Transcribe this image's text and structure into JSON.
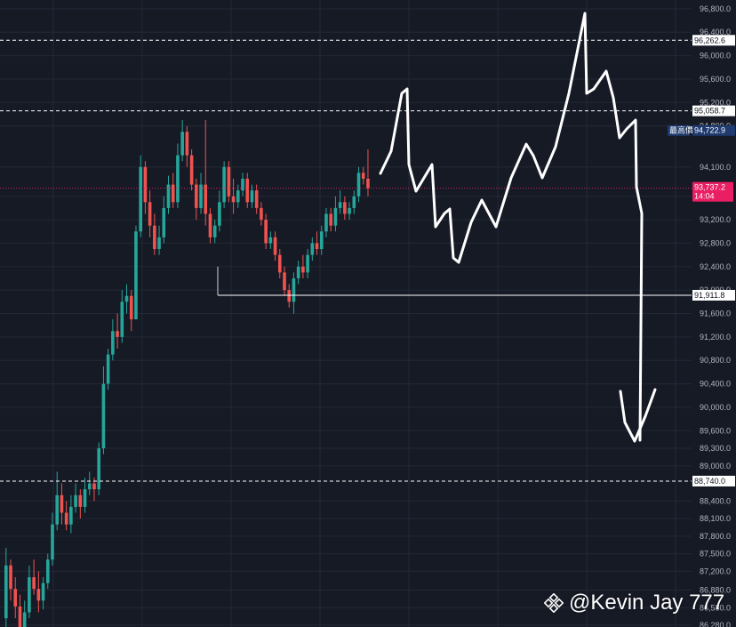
{
  "chart_data": {
    "type": "candlestick",
    "y_axis": {
      "ticks": [
        "96,800.0",
        "96,400.0",
        "96,000.0",
        "95,600.0",
        "95,200.0",
        "94,800.0",
        "94,100.0",
        "93,600.0",
        "93,200.0",
        "92,800.0",
        "92,400.0",
        "92,000.0",
        "91,600.0",
        "91,200.0",
        "90,800.0",
        "90,400.0",
        "90,000.0",
        "89,600.0",
        "89,300.0",
        "89,000.0",
        "88,400.0",
        "88,100.0",
        "87,800.0",
        "87,500.0",
        "87,200.0",
        "86,880.0",
        "86,580.0",
        "86,280.0"
      ],
      "ylim": [
        86250,
        96950
      ]
    },
    "levels": [
      {
        "label": "96,262.6",
        "value": 96262.6,
        "style": "dashed"
      },
      {
        "label": "95,058.7",
        "value": 95058.7,
        "style": "dashed"
      },
      {
        "label": "91,911.8",
        "value": 91911.8,
        "style": "solid"
      },
      {
        "label": "88,740.0",
        "value": 88740.0,
        "style": "dashed"
      }
    ],
    "high_marker": {
      "label": "最高價",
      "value_label": "94,722.9",
      "value": 94722.9
    },
    "current_price": {
      "label": "93,737.2",
      "countdown": "14:04",
      "value": 93737.2
    },
    "candles": [
      [
        86400,
        87300,
        86150,
        87600
      ],
      [
        87300,
        86900,
        86700,
        87400
      ],
      [
        86900,
        86600,
        86400,
        87100
      ],
      [
        86600,
        86200,
        86050,
        86800
      ],
      [
        86200,
        86500,
        85900,
        86700
      ],
      [
        86500,
        87100,
        86400,
        87300
      ],
      [
        87100,
        86900,
        86800,
        87400
      ],
      [
        86900,
        86700,
        86500,
        87200
      ],
      [
        86700,
        87000,
        86550,
        87100
      ],
      [
        87000,
        87400,
        86900,
        87500
      ],
      [
        87400,
        88000,
        87300,
        88200
      ],
      [
        88000,
        88500,
        87900,
        88900
      ],
      [
        88500,
        88200,
        88000,
        88700
      ],
      [
        88200,
        88000,
        87900,
        88400
      ],
      [
        88000,
        88300,
        87850,
        88500
      ],
      [
        88300,
        88500,
        88200,
        88700
      ],
      [
        88500,
        88300,
        88100,
        88600
      ],
      [
        88300,
        88600,
        88200,
        88800
      ],
      [
        88600,
        88700,
        88500,
        88900
      ],
      [
        88700,
        88600,
        88400,
        88800
      ],
      [
        88600,
        89300,
        88500,
        89400
      ],
      [
        89300,
        90400,
        89200,
        90700
      ],
      [
        90400,
        90900,
        90300,
        91000
      ],
      [
        90900,
        91300,
        90800,
        91500
      ],
      [
        91300,
        91200,
        91000,
        91600
      ],
      [
        91200,
        91800,
        91100,
        92000
      ],
      [
        91800,
        91900,
        91600,
        92100
      ],
      [
        91900,
        91500,
        91300,
        92000
      ],
      [
        91500,
        93000,
        91500,
        93100
      ],
      [
        93000,
        94100,
        92900,
        94300
      ],
      [
        94100,
        93500,
        93300,
        94200
      ],
      [
        93500,
        93100,
        92900,
        93700
      ],
      [
        93100,
        92700,
        92600,
        93300
      ],
      [
        92700,
        92900,
        92600,
        93100
      ],
      [
        92900,
        93400,
        92800,
        93600
      ],
      [
        93400,
        93800,
        93300,
        93950
      ],
      [
        93800,
        93500,
        93400,
        94000
      ],
      [
        93500,
        94300,
        93400,
        94500
      ],
      [
        94300,
        94700,
        94200,
        94900
      ],
      [
        94700,
        94300,
        94100,
        94800
      ],
      [
        94300,
        93800,
        93700,
        94400
      ],
      [
        93800,
        93400,
        93200,
        93900
      ],
      [
        93400,
        93800,
        93300,
        94000
      ],
      [
        93800,
        93300,
        93100,
        94900
      ],
      [
        93300,
        92900,
        92800,
        93400
      ],
      [
        92900,
        93100,
        92800,
        93200
      ],
      [
        93100,
        93500,
        93000,
        93700
      ],
      [
        93500,
        94100,
        93400,
        94200
      ],
      [
        94100,
        93600,
        93500,
        94200
      ],
      [
        93600,
        93500,
        93300,
        93900
      ],
      [
        93500,
        93700,
        93400,
        93800
      ],
      [
        93700,
        93900,
        93600,
        94000
      ],
      [
        93900,
        93500,
        93400,
        94000
      ],
      [
        93500,
        93700,
        93400,
        93800
      ],
      [
        93700,
        93400,
        93300,
        93800
      ],
      [
        93400,
        93200,
        93100,
        93500
      ],
      [
        93200,
        92800,
        92700,
        93300
      ],
      [
        92800,
        92900,
        92700,
        93000
      ],
      [
        92900,
        92600,
        92500,
        93000
      ],
      [
        92600,
        92300,
        92200,
        92700
      ],
      [
        92300,
        92000,
        91900,
        92400
      ],
      [
        92000,
        91800,
        91700,
        92100
      ],
      [
        91800,
        92200,
        91600,
        92300
      ],
      [
        92200,
        92400,
        92100,
        92500
      ],
      [
        92400,
        92300,
        92200,
        92600
      ],
      [
        92300,
        92600,
        92200,
        92700
      ],
      [
        92600,
        92800,
        92500,
        92900
      ],
      [
        92800,
        92700,
        92600,
        93000
      ],
      [
        92700,
        93000,
        92600,
        93100
      ],
      [
        93000,
        93300,
        92900,
        93400
      ],
      [
        93300,
        93100,
        93000,
        93400
      ],
      [
        93100,
        93400,
        93000,
        93600
      ],
      [
        93400,
        93500,
        93300,
        93700
      ],
      [
        93500,
        93300,
        93200,
        93600
      ],
      [
        93300,
        93400,
        93200,
        93500
      ],
      [
        93400,
        93600,
        93300,
        93700
      ],
      [
        93600,
        94000,
        93500,
        94100
      ],
      [
        94000,
        93900,
        93800,
        94100
      ],
      [
        93900,
        93737,
        93600,
        94400
      ]
    ]
  },
  "watermark": {
    "text": "@Kevin Jay 777",
    "logo": "binance-logo-icon"
  },
  "colors": {
    "up": "#26a69a",
    "down": "#ef5350",
    "current": "#e91e63",
    "highlight": "#1e3a6e",
    "background": "#161a25",
    "grid": "#232837"
  },
  "drawing": {
    "type": "freehand-arrow",
    "color": "#ffffff"
  }
}
